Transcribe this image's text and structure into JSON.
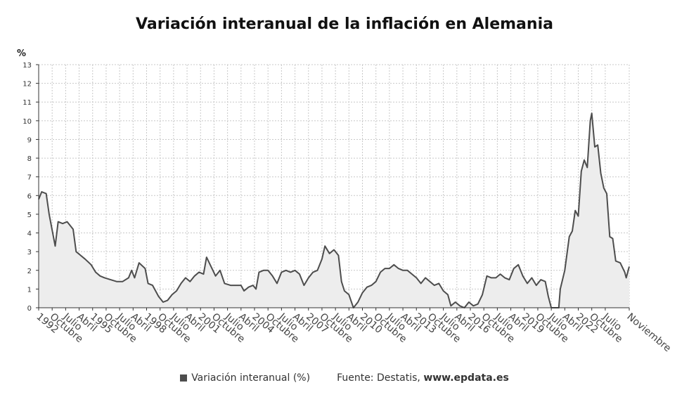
{
  "chart_data": {
    "type": "area",
    "title": "Variación interanual de la inflación en Alemania",
    "ylabel": "%",
    "ylim": [
      0,
      13
    ],
    "yticks": [
      0,
      1,
      2,
      3,
      4,
      5,
      6,
      7,
      8,
      9,
      10,
      11,
      12,
      13
    ],
    "grid": true,
    "series_color": "#4d4d4d",
    "fill_color": "#ededed",
    "x_start": "1992-01",
    "x_end": "2024-11",
    "x_tick_labels": [
      {
        "date": "1992-01",
        "label": "1992"
      },
      {
        "date": "1992-10",
        "label": "Octubre"
      },
      {
        "date": "1993-07",
        "label": "Julio"
      },
      {
        "date": "1994-04",
        "label": "Abril"
      },
      {
        "date": "1995-01",
        "label": "1995"
      },
      {
        "date": "1995-10",
        "label": "Octubre"
      },
      {
        "date": "1996-07",
        "label": "Julio"
      },
      {
        "date": "1997-04",
        "label": "Abril"
      },
      {
        "date": "1998-01",
        "label": "1998"
      },
      {
        "date": "1998-10",
        "label": "Octubre"
      },
      {
        "date": "1999-07",
        "label": "Julio"
      },
      {
        "date": "2000-04",
        "label": "Abril"
      },
      {
        "date": "2001-01",
        "label": "2001"
      },
      {
        "date": "2001-10",
        "label": "Octubre"
      },
      {
        "date": "2002-07",
        "label": "Julio"
      },
      {
        "date": "2003-04",
        "label": "Abril"
      },
      {
        "date": "2004-01",
        "label": "2004"
      },
      {
        "date": "2004-10",
        "label": "Octubre"
      },
      {
        "date": "2005-07",
        "label": "Julio"
      },
      {
        "date": "2006-04",
        "label": "Abril"
      },
      {
        "date": "2007-01",
        "label": "2007"
      },
      {
        "date": "2007-10",
        "label": "Octubre"
      },
      {
        "date": "2008-07",
        "label": "Julio"
      },
      {
        "date": "2009-04",
        "label": "Abril"
      },
      {
        "date": "2010-01",
        "label": "2010"
      },
      {
        "date": "2010-10",
        "label": "Octubre"
      },
      {
        "date": "2011-07",
        "label": "Julio"
      },
      {
        "date": "2012-04",
        "label": "Abril"
      },
      {
        "date": "2013-01",
        "label": "2013"
      },
      {
        "date": "2013-10",
        "label": "Octubre"
      },
      {
        "date": "2014-07",
        "label": "Julio"
      },
      {
        "date": "2015-04",
        "label": "Abril"
      },
      {
        "date": "2016-01",
        "label": "2016"
      },
      {
        "date": "2016-10",
        "label": "Octubre"
      },
      {
        "date": "2017-07",
        "label": "Julio"
      },
      {
        "date": "2018-04",
        "label": "Abril"
      },
      {
        "date": "2019-01",
        "label": "2019"
      },
      {
        "date": "2019-10",
        "label": "Octubre"
      },
      {
        "date": "2020-07",
        "label": "Julio"
      },
      {
        "date": "2021-04",
        "label": "Abril"
      },
      {
        "date": "2022-01",
        "label": "2022"
      },
      {
        "date": "2022-10",
        "label": "Octubre"
      },
      {
        "date": "2023-07",
        "label": "Julio"
      },
      {
        "date": "2024-11",
        "label": "Noviembre"
      }
    ],
    "points": [
      [
        "1992-01",
        5.8
      ],
      [
        "1992-03",
        6.2
      ],
      [
        "1992-06",
        6.1
      ],
      [
        "1992-08",
        5.0
      ],
      [
        "1992-12",
        3.3
      ],
      [
        "1993-02",
        4.6
      ],
      [
        "1993-05",
        4.5
      ],
      [
        "1993-08",
        4.6
      ],
      [
        "1993-12",
        4.2
      ],
      [
        "1994-02",
        3.0
      ],
      [
        "1994-05",
        2.8
      ],
      [
        "1994-08",
        2.6
      ],
      [
        "1994-12",
        2.3
      ],
      [
        "1995-03",
        1.9
      ],
      [
        "1995-06",
        1.7
      ],
      [
        "1995-09",
        1.6
      ],
      [
        "1996-01",
        1.5
      ],
      [
        "1996-05",
        1.4
      ],
      [
        "1996-09",
        1.4
      ],
      [
        "1997-01",
        1.6
      ],
      [
        "1997-03",
        2.0
      ],
      [
        "1997-05",
        1.6
      ],
      [
        "1997-08",
        2.4
      ],
      [
        "1997-12",
        2.1
      ],
      [
        "1998-02",
        1.3
      ],
      [
        "1998-05",
        1.2
      ],
      [
        "1998-09",
        0.6
      ],
      [
        "1998-12",
        0.3
      ],
      [
        "1999-03",
        0.4
      ],
      [
        "1999-06",
        0.7
      ],
      [
        "1999-09",
        0.9
      ],
      [
        "1999-12",
        1.3
      ],
      [
        "2000-03",
        1.6
      ],
      [
        "2000-06",
        1.4
      ],
      [
        "2000-09",
        1.7
      ],
      [
        "2000-12",
        1.9
      ],
      [
        "2001-03",
        1.8
      ],
      [
        "2001-05",
        2.7
      ],
      [
        "2001-08",
        2.2
      ],
      [
        "2001-11",
        1.7
      ],
      [
        "2002-02",
        2.0
      ],
      [
        "2002-05",
        1.3
      ],
      [
        "2002-09",
        1.2
      ],
      [
        "2002-12",
        1.2
      ],
      [
        "2003-04",
        1.2
      ],
      [
        "2003-06",
        0.9
      ],
      [
        "2003-09",
        1.1
      ],
      [
        "2003-12",
        1.2
      ],
      [
        "2004-02",
        1.0
      ],
      [
        "2004-04",
        1.9
      ],
      [
        "2004-07",
        2.0
      ],
      [
        "2004-10",
        2.0
      ],
      [
        "2005-01",
        1.7
      ],
      [
        "2005-04",
        1.3
      ],
      [
        "2005-07",
        1.9
      ],
      [
        "2005-10",
        2.0
      ],
      [
        "2006-01",
        1.9
      ],
      [
        "2006-04",
        2.0
      ],
      [
        "2006-07",
        1.8
      ],
      [
        "2006-10",
        1.2
      ],
      [
        "2007-01",
        1.6
      ],
      [
        "2007-04",
        1.9
      ],
      [
        "2007-07",
        2.0
      ],
      [
        "2007-10",
        2.6
      ],
      [
        "2007-12",
        3.3
      ],
      [
        "2008-03",
        2.9
      ],
      [
        "2008-06",
        3.1
      ],
      [
        "2008-09",
        2.8
      ],
      [
        "2008-11",
        1.4
      ],
      [
        "2009-01",
        0.9
      ],
      [
        "2009-04",
        0.7
      ],
      [
        "2009-07",
        0.0
      ],
      [
        "2009-10",
        0.3
      ],
      [
        "2010-01",
        0.8
      ],
      [
        "2010-04",
        1.1
      ],
      [
        "2010-07",
        1.2
      ],
      [
        "2010-10",
        1.4
      ],
      [
        "2011-01",
        1.9
      ],
      [
        "2011-04",
        2.1
      ],
      [
        "2011-07",
        2.1
      ],
      [
        "2011-10",
        2.3
      ],
      [
        "2012-01",
        2.1
      ],
      [
        "2012-04",
        2.0
      ],
      [
        "2012-07",
        2.0
      ],
      [
        "2012-10",
        1.8
      ],
      [
        "2013-01",
        1.6
      ],
      [
        "2013-04",
        1.3
      ],
      [
        "2013-07",
        1.6
      ],
      [
        "2013-10",
        1.4
      ],
      [
        "2014-01",
        1.2
      ],
      [
        "2014-04",
        1.3
      ],
      [
        "2014-07",
        0.9
      ],
      [
        "2014-10",
        0.7
      ],
      [
        "2014-12",
        0.1
      ],
      [
        "2015-03",
        0.3
      ],
      [
        "2015-06",
        0.1
      ],
      [
        "2015-09",
        -0.2
      ],
      [
        "2015-12",
        0.3
      ],
      [
        "2016-03",
        0.1
      ],
      [
        "2016-06",
        0.2
      ],
      [
        "2016-09",
        0.7
      ],
      [
        "2016-12",
        1.7
      ],
      [
        "2017-03",
        1.6
      ],
      [
        "2017-06",
        1.6
      ],
      [
        "2017-09",
        1.8
      ],
      [
        "2017-12",
        1.6
      ],
      [
        "2018-03",
        1.5
      ],
      [
        "2018-06",
        2.1
      ],
      [
        "2018-09",
        2.3
      ],
      [
        "2018-12",
        1.7
      ],
      [
        "2019-03",
        1.3
      ],
      [
        "2019-06",
        1.6
      ],
      [
        "2019-09",
        1.2
      ],
      [
        "2019-12",
        1.5
      ],
      [
        "2020-03",
        1.4
      ],
      [
        "2020-05",
        0.6
      ],
      [
        "2020-07",
        -0.1
      ],
      [
        "2020-10",
        -0.2
      ],
      [
        "2020-12",
        -0.3
      ],
      [
        "2021-01",
        1.0
      ],
      [
        "2021-04",
        2.0
      ],
      [
        "2021-07",
        3.8
      ],
      [
        "2021-09",
        4.1
      ],
      [
        "2021-11",
        5.2
      ],
      [
        "2022-01",
        4.9
      ],
      [
        "2022-03",
        7.3
      ],
      [
        "2022-05",
        7.9
      ],
      [
        "2022-07",
        7.5
      ],
      [
        "2022-09",
        10.0
      ],
      [
        "2022-10",
        10.4
      ],
      [
        "2022-12",
        8.6
      ],
      [
        "2023-02",
        8.7
      ],
      [
        "2023-04",
        7.2
      ],
      [
        "2023-06",
        6.4
      ],
      [
        "2023-08",
        6.1
      ],
      [
        "2023-10",
        3.8
      ],
      [
        "2023-12",
        3.7
      ],
      [
        "2024-02",
        2.5
      ],
      [
        "2024-05",
        2.4
      ],
      [
        "2024-08",
        1.9
      ],
      [
        "2024-09",
        1.6
      ],
      [
        "2024-11",
        2.2
      ]
    ]
  },
  "legend": {
    "series_label": "Variación interanual (%)",
    "source_prefix": "Fuente: Destatis, ",
    "source_site": "www.epdata.es"
  }
}
